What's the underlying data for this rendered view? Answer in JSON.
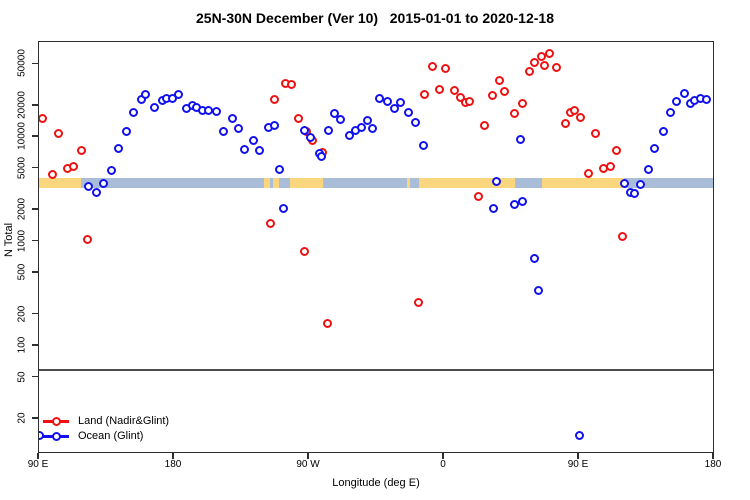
{
  "title": "25N-30N December (Ver 10)   2015-01-01 to 2020-12-18",
  "chart_data": {
    "type": "scatter",
    "title": "25N-30N December (Ver 10)   2015-01-01 to 2020-12-18",
    "xlabel": "Longitude (deg E)",
    "ylabel": "N Total",
    "y_scale": "log",
    "ylim": [
      10,
      80000
    ],
    "grid": false,
    "legend_position": "bottom-left",
    "y_ticks": [
      50000,
      20000,
      10000,
      5000,
      2000,
      1000,
      500,
      200,
      100,
      50,
      20
    ],
    "x_ticks": [
      {
        "deg": 90,
        "label": "90 E"
      },
      {
        "deg": 180,
        "label": "180"
      },
      {
        "deg": 270,
        "label": "90 W"
      },
      {
        "deg": 360,
        "label": "0"
      },
      {
        "deg": 450,
        "label": "90 E"
      },
      {
        "deg": 540,
        "label": "180"
      }
    ],
    "x_axis_deg_range": [
      90,
      540
    ],
    "threshold_line_value": 60,
    "map_strip": {
      "value_top": 4100,
      "value_bottom": 3250,
      "ocean_color": "#a9bdd9",
      "land_color": "#fad77e",
      "land_segments_deg": [
        [
          90,
          118
        ],
        [
          240,
          244
        ],
        [
          246,
          250
        ],
        [
          257,
          279
        ],
        [
          335,
          337
        ],
        [
          343,
          407
        ],
        [
          425,
          480
        ]
      ]
    },
    "series": [
      {
        "name": "Land (Nadir&Glint)",
        "color": "#ee1111",
        "points": [
          [
            92,
            15000
          ],
          [
            99,
            4400
          ],
          [
            103,
            10800
          ],
          [
            109,
            5050
          ],
          [
            113,
            5300
          ],
          [
            118,
            7400
          ],
          [
            122,
            1060
          ],
          [
            244,
            1490
          ],
          [
            247,
            23200
          ],
          [
            254,
            32600
          ],
          [
            258,
            32200
          ],
          [
            263,
            15000
          ],
          [
            267,
            800
          ],
          [
            268,
            11400
          ],
          [
            272,
            9400
          ],
          [
            279,
            7100
          ],
          [
            282,
            163
          ],
          [
            343,
            264
          ],
          [
            347,
            25800
          ],
          [
            352,
            48000
          ],
          [
            357,
            28800
          ],
          [
            361,
            46000
          ],
          [
            367,
            28300
          ],
          [
            371,
            24300
          ],
          [
            374,
            21400
          ],
          [
            377,
            22000
          ],
          [
            383,
            2680
          ],
          [
            387,
            13100
          ],
          [
            392,
            25400
          ],
          [
            397,
            34600
          ],
          [
            400,
            27300
          ],
          [
            407,
            16800
          ],
          [
            412,
            21000
          ],
          [
            417,
            42400
          ],
          [
            420,
            52200
          ],
          [
            425,
            59500
          ],
          [
            427,
            49200
          ],
          [
            430,
            64000
          ],
          [
            435,
            46800
          ],
          [
            441,
            13500
          ],
          [
            444,
            17200
          ],
          [
            447,
            18200
          ],
          [
            451,
            15400
          ],
          [
            456,
            4480
          ],
          [
            461,
            10800
          ],
          [
            466,
            5050
          ],
          [
            471,
            5300
          ],
          [
            475,
            7500
          ],
          [
            479,
            1110
          ]
        ]
      },
      {
        "name": "Ocean (Glint)",
        "color": "#1111ee",
        "points": [
          [
            90,
            14
          ],
          [
            123,
            3400
          ],
          [
            128,
            2950
          ],
          [
            133,
            3600
          ],
          [
            138,
            4830
          ],
          [
            143,
            7800
          ],
          [
            148,
            11250
          ],
          [
            153,
            17200
          ],
          [
            158,
            23100
          ],
          [
            161,
            25800
          ],
          [
            167,
            19200
          ],
          [
            172,
            22600
          ],
          [
            175,
            23400
          ],
          [
            179,
            23400
          ],
          [
            183,
            25800
          ],
          [
            188,
            18900
          ],
          [
            192,
            20300
          ],
          [
            195,
            19200
          ],
          [
            199,
            18100
          ],
          [
            203,
            18100
          ],
          [
            208,
            17800
          ],
          [
            213,
            11400
          ],
          [
            219,
            15000
          ],
          [
            223,
            12200
          ],
          [
            227,
            7700
          ],
          [
            233,
            9400
          ],
          [
            237,
            7500
          ],
          [
            243,
            12500
          ],
          [
            247,
            13000
          ],
          [
            250,
            4950
          ],
          [
            253,
            2100
          ],
          [
            267,
            11500
          ],
          [
            271,
            9900
          ],
          [
            277,
            7000
          ],
          [
            278,
            6600
          ],
          [
            283,
            11700
          ],
          [
            287,
            16800
          ],
          [
            291,
            14900
          ],
          [
            297,
            10500
          ],
          [
            301,
            11500
          ],
          [
            305,
            12500
          ],
          [
            309,
            14500
          ],
          [
            312,
            12200
          ],
          [
            317,
            23300
          ],
          [
            322,
            22000
          ],
          [
            327,
            19000
          ],
          [
            331,
            21600
          ],
          [
            336,
            17300
          ],
          [
            341,
            13800
          ],
          [
            346,
            8250
          ],
          [
            393,
            2100
          ],
          [
            395,
            3760
          ],
          [
            407,
            2280
          ],
          [
            411,
            9600
          ],
          [
            412,
            2400
          ],
          [
            420,
            690
          ],
          [
            423,
            344
          ],
          [
            450,
            14
          ],
          [
            480,
            3590
          ],
          [
            484,
            2940
          ],
          [
            487,
            2900
          ],
          [
            491,
            3500
          ],
          [
            496,
            4930
          ],
          [
            500,
            7840
          ],
          [
            506,
            11300
          ],
          [
            511,
            17200
          ],
          [
            515,
            21900
          ],
          [
            520,
            26200
          ],
          [
            524,
            21000
          ],
          [
            527,
            22600
          ],
          [
            531,
            23400
          ],
          [
            535,
            23100
          ]
        ]
      }
    ]
  }
}
